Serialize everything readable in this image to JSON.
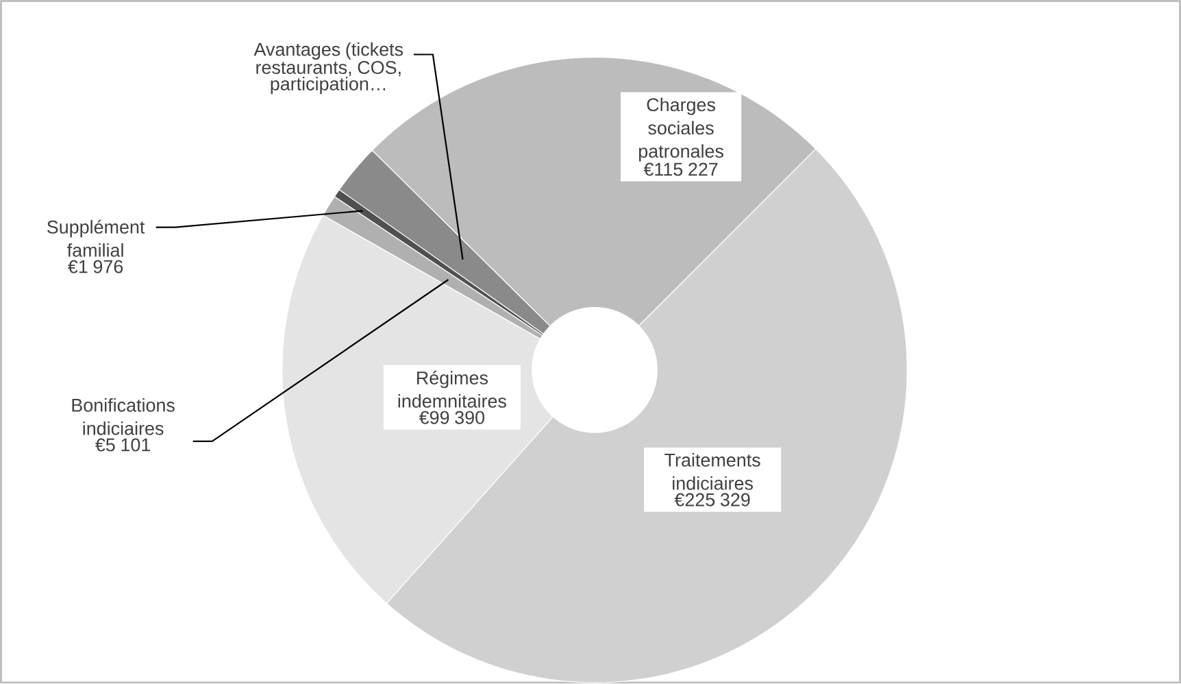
{
  "chart_data": {
    "type": "donut",
    "categories": [
      "Traitements indiciaires",
      "Régimes indemnitaires",
      "Bonifications indiciaires",
      "Supplément familial",
      "Avantages (tickets restaurants, COS, participation…",
      "Charges sociales patronales"
    ],
    "values": [
      225329,
      99390,
      5101,
      1976,
      12000,
      115227
    ],
    "value_labels": [
      "€225 329",
      "€99 390",
      "€5 101",
      "€1 976",
      null,
      "€115 227"
    ],
    "colors": [
      "#d0d0d0",
      "#e4e4e4",
      "#b0b0b0",
      "#505050",
      "#8a8a8a",
      "#bcbcbc"
    ]
  }
}
